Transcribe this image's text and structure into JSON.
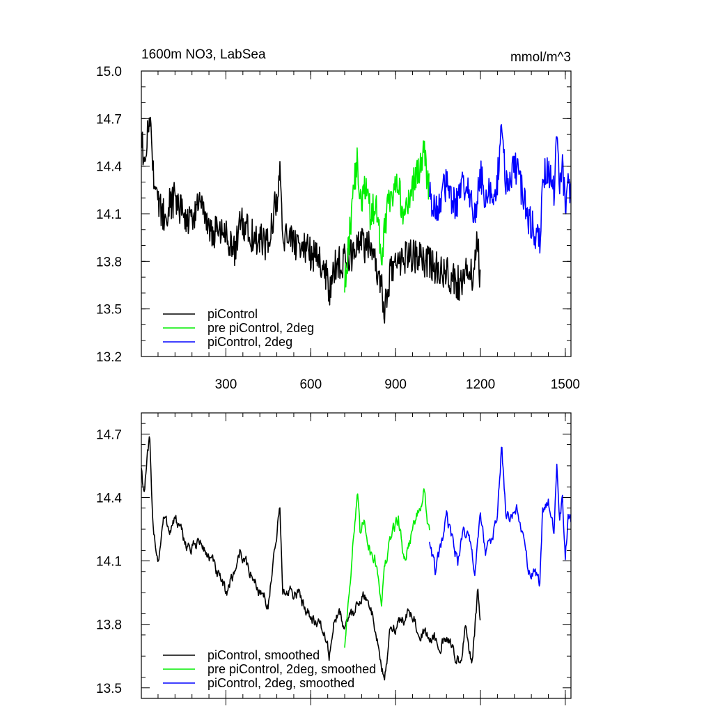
{
  "chart_data": [
    {
      "type": "line",
      "title": "1600m NO3, LabSea",
      "units": "mmol/m^3",
      "xlabel": "",
      "ylabel": "",
      "xlim": [
        1,
        1520
      ],
      "ylim": [
        13.2,
        15.0
      ],
      "xticks": [
        300,
        600,
        900,
        1200,
        1500
      ],
      "xtick_labels": [
        "300",
        "600",
        "900",
        "1200",
        "1500"
      ],
      "yticks": [
        13.2,
        13.5,
        13.8,
        14.1,
        14.4,
        14.7,
        15.0
      ],
      "ytick_labels": [
        "13.2",
        "13.5",
        "13.8",
        "14.1",
        "14.4",
        "14.7",
        "15.0"
      ],
      "grid": false,
      "legend_position": "bottom-left",
      "series": [
        {
          "name": "piControl",
          "color": "#000000",
          "x": [
            1,
            10,
            20,
            30,
            40,
            50,
            60,
            80,
            100,
            120,
            150,
            180,
            200,
            250,
            300,
            330,
            350,
            400,
            450,
            480,
            490,
            500,
            550,
            600,
            650,
            665,
            680,
            700,
            720,
            750,
            780,
            800,
            820,
            850,
            860,
            870,
            880,
            900,
            950,
            1000,
            1050,
            1100,
            1130,
            1150,
            1170,
            1190,
            1200
          ],
          "y": [
            14.66,
            14.35,
            14.55,
            14.75,
            14.45,
            14.25,
            14.15,
            14.1,
            14.15,
            14.2,
            14.1,
            14.05,
            14.15,
            14.0,
            13.95,
            13.85,
            14.05,
            13.95,
            13.9,
            14.2,
            14.4,
            13.95,
            13.9,
            13.85,
            13.75,
            13.6,
            13.75,
            13.8,
            13.8,
            13.85,
            13.9,
            13.9,
            13.85,
            13.65,
            13.5,
            13.55,
            13.7,
            13.8,
            13.85,
            13.8,
            13.75,
            13.7,
            13.65,
            13.75,
            13.7,
            13.95,
            13.65
          ]
        },
        {
          "name": "pre piControl, 2deg",
          "color": "#00ee00",
          "x": [
            720,
            735,
            750,
            765,
            775,
            790,
            810,
            830,
            850,
            860,
            875,
            890,
            910,
            930,
            950,
            970,
            990,
            1000,
            1010,
            1020
          ],
          "y": [
            13.65,
            13.9,
            14.25,
            14.45,
            14.15,
            14.3,
            14.1,
            14.15,
            13.85,
            14.0,
            14.15,
            14.25,
            14.3,
            14.05,
            14.2,
            14.35,
            14.4,
            14.55,
            14.3,
            14.25
          ]
        },
        {
          "name": "piControl, 2deg",
          "color": "#0000ff",
          "x": [
            1020,
            1040,
            1060,
            1080,
            1100,
            1120,
            1140,
            1160,
            1180,
            1200,
            1220,
            1240,
            1260,
            1275,
            1290,
            1310,
            1330,
            1350,
            1370,
            1390,
            1410,
            1420,
            1440,
            1460,
            1470,
            1480,
            1490,
            1500,
            1510,
            1520
          ],
          "y": [
            14.25,
            14.1,
            14.2,
            14.3,
            14.2,
            14.15,
            14.3,
            14.2,
            14.1,
            14.35,
            14.2,
            14.25,
            14.3,
            14.72,
            14.3,
            14.35,
            14.4,
            14.2,
            14.05,
            14.0,
            13.9,
            14.3,
            14.4,
            14.25,
            14.65,
            14.3,
            14.45,
            14.1,
            14.3,
            14.25
          ]
        }
      ]
    },
    {
      "type": "line",
      "title": "",
      "xlabel": "",
      "ylabel": "",
      "xlim": [
        1,
        1520
      ],
      "ylim": [
        13.45,
        14.8
      ],
      "xticks": [
        300,
        600,
        900,
        1200,
        1500
      ],
      "yticks": [
        13.5,
        13.8,
        14.1,
        14.4,
        14.7
      ],
      "ytick_labels": [
        "13.5",
        "13.8",
        "14.1",
        "14.4",
        "14.7"
      ],
      "grid": false,
      "legend_position": "bottom-left",
      "series": [
        {
          "name": "piControl, smoothed",
          "color": "#000000",
          "x": [
            1,
            10,
            20,
            30,
            40,
            50,
            60,
            80,
            100,
            120,
            150,
            180,
            200,
            250,
            280,
            300,
            330,
            350,
            400,
            450,
            480,
            490,
            500,
            550,
            600,
            650,
            665,
            680,
            700,
            720,
            750,
            780,
            800,
            820,
            850,
            860,
            870,
            880,
            900,
            950,
            1000,
            1050,
            1100,
            1130,
            1150,
            1170,
            1190,
            1200
          ],
          "y": [
            14.55,
            14.42,
            14.55,
            14.67,
            14.3,
            14.2,
            14.1,
            14.3,
            14.25,
            14.3,
            14.2,
            14.15,
            14.2,
            14.1,
            14.0,
            13.95,
            14.05,
            14.15,
            14.0,
            13.9,
            14.2,
            14.38,
            13.95,
            13.95,
            13.85,
            13.75,
            13.65,
            13.8,
            13.85,
            13.8,
            13.85,
            13.95,
            13.9,
            13.85,
            13.6,
            13.55,
            13.62,
            13.75,
            13.8,
            13.85,
            13.75,
            13.72,
            13.7,
            13.6,
            13.8,
            13.6,
            13.95,
            13.78
          ]
        },
        {
          "name": "pre piControl, 2deg, smoothed",
          "color": "#00ee00",
          "x": [
            720,
            735,
            750,
            765,
            775,
            790,
            810,
            830,
            850,
            860,
            875,
            890,
            910,
            930,
            950,
            970,
            990,
            1000,
            1010,
            1020
          ],
          "y": [
            13.7,
            13.95,
            14.2,
            14.4,
            14.2,
            14.3,
            14.15,
            14.1,
            13.92,
            14.05,
            14.15,
            14.25,
            14.3,
            14.1,
            14.2,
            14.3,
            14.35,
            14.45,
            14.3,
            14.22
          ]
        },
        {
          "name": "piControl, 2deg, smoothed",
          "color": "#0000ff",
          "x": [
            1020,
            1040,
            1060,
            1080,
            1100,
            1120,
            1140,
            1160,
            1180,
            1200,
            1220,
            1240,
            1260,
            1275,
            1290,
            1310,
            1330,
            1350,
            1370,
            1390,
            1410,
            1420,
            1440,
            1460,
            1470,
            1480,
            1490,
            1500,
            1510,
            1520
          ],
          "y": [
            14.2,
            14.05,
            14.15,
            14.3,
            14.2,
            14.1,
            14.25,
            14.2,
            14.05,
            14.3,
            14.15,
            14.2,
            14.3,
            14.65,
            14.3,
            14.3,
            14.35,
            14.2,
            14.05,
            14.05,
            13.98,
            14.35,
            14.4,
            14.25,
            14.56,
            14.3,
            14.4,
            14.12,
            14.3,
            14.28
          ]
        }
      ]
    }
  ]
}
